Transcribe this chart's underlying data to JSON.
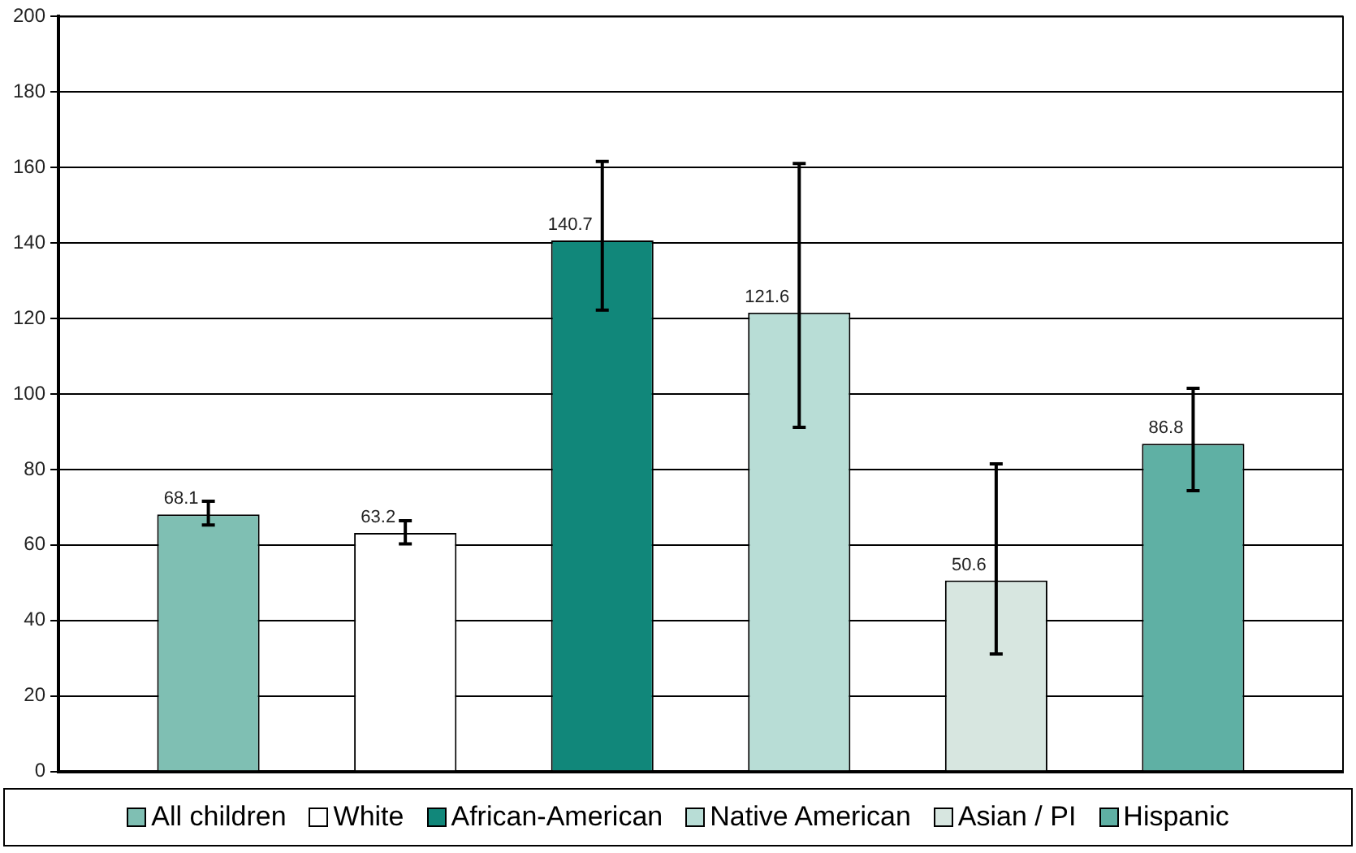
{
  "chart_data": {
    "type": "bar",
    "categories": [
      null
    ],
    "series": [
      {
        "name": "All children",
        "color": "#7fbfb3",
        "values": [
          68.1
        ],
        "errors": [
          [
            65.3,
            71.6
          ]
        ]
      },
      {
        "name": "White",
        "color": "#ffffff",
        "values": [
          63.2
        ],
        "errors": [
          [
            60.3,
            66.4
          ]
        ]
      },
      {
        "name": "African-American",
        "color": "#11877a",
        "values": [
          140.7
        ],
        "errors": [
          [
            122.2,
            161.6
          ]
        ]
      },
      {
        "name": "Native American",
        "color": "#b8ddd6",
        "values": [
          121.6
        ],
        "errors": [
          [
            91.2,
            161.1
          ]
        ]
      },
      {
        "name": "Asian / PI",
        "color": "#d7e6e0",
        "values": [
          50.6
        ],
        "errors": [
          [
            31.1,
            81.5
          ]
        ]
      },
      {
        "name": "Hispanic",
        "color": "#5fb0a4",
        "values": [
          86.8
        ],
        "errors": [
          [
            74.4,
            101.5
          ]
        ]
      }
    ],
    "ylim": [
      0,
      200
    ],
    "yticks": [
      0,
      20,
      40,
      60,
      80,
      100,
      120,
      140,
      160,
      180,
      200
    ],
    "grid": "y",
    "legend": "bottom",
    "data_labels": true
  }
}
